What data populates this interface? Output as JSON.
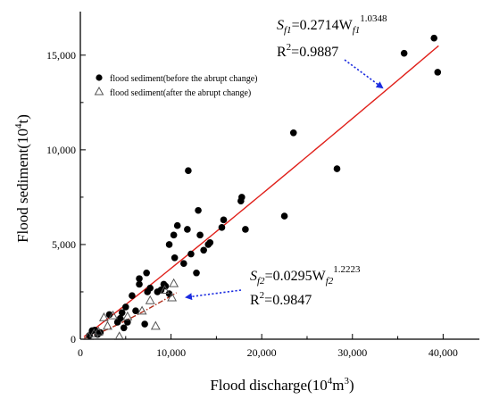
{
  "chart_data": {
    "type": "scatter",
    "xlabel": "Flood discharge(10",
    "xlabel_sup": "4",
    "xlabel_unit": "m",
    "xlabel_sup2": "3",
    "xlabel_end": ")",
    "ylabel": "Flood sediment(10",
    "ylabel_sup": "4",
    "ylabel_end": "t)",
    "xlim": [
      0,
      44000
    ],
    "ylim": [
      0,
      17300
    ],
    "xticks": [
      0,
      10000,
      20000,
      30000,
      40000
    ],
    "xtick_labels": [
      "0",
      "10,000",
      "20,000",
      "30,000",
      "40,000"
    ],
    "yticks": [
      0,
      5000,
      10000,
      15000
    ],
    "ytick_labels": [
      "0",
      "5,000",
      "10,000",
      "15,000"
    ],
    "legend_position": "upper-left",
    "series": [
      {
        "name": "flood sediment(before the abrupt change)",
        "marker": "circle-filled",
        "color": "#000000",
        "x": [
          1000,
          1300,
          1600,
          1900,
          2200,
          3200,
          4100,
          4400,
          4600,
          4800,
          5000,
          5200,
          5700,
          6100,
          6500,
          6500,
          7100,
          7400,
          7700,
          7300,
          8500,
          8900,
          9200,
          9400,
          9800,
          9800,
          10300,
          10400,
          10700,
          11400,
          11800,
          11900,
          12200,
          12800,
          13000,
          13200,
          13600,
          14100,
          14300,
          15600,
          15800,
          17700,
          17800,
          18200,
          22500,
          23500,
          28300,
          35700,
          39000,
          39400
        ],
        "y": [
          200,
          450,
          480,
          250,
          350,
          1300,
          900,
          1100,
          1400,
          600,
          1700,
          900,
          2300,
          1500,
          2900,
          3200,
          800,
          2500,
          2700,
          3500,
          2500,
          2600,
          2900,
          2800,
          5000,
          2400,
          5500,
          4300,
          6000,
          4000,
          5800,
          8900,
          4500,
          3500,
          6800,
          5500,
          4700,
          5000,
          5100,
          5900,
          6300,
          7300,
          7500,
          5800,
          6500,
          10900,
          9000,
          15100,
          15900,
          14100
        ]
      },
      {
        "name": "flood sediment(after the abrupt change)",
        "marker": "triangle-open",
        "color": "#555555",
        "x": [
          900,
          1500,
          2000,
          2600,
          3000,
          3600,
          4300,
          5200,
          6800,
          7700,
          8300,
          9300,
          10100,
          10300
        ],
        "y": [
          150,
          300,
          400,
          1150,
          700,
          1250,
          150,
          1200,
          1500,
          2050,
          700,
          2600,
          2200,
          2950
        ]
      }
    ],
    "fits": [
      {
        "formula_prefix": "S",
        "formula_sub": "f1",
        "formula_mid": "=0.2714W",
        "formula_sub2": "f1",
        "formula_sup": "1.0348",
        "r2_prefix": "R",
        "r2_sup": "2",
        "r2_value": "=0.9887",
        "coef": 0.2714,
        "exp": 1.0348,
        "x_range": [
          400,
          39500
        ],
        "color": "#e0201a",
        "style": "solid"
      },
      {
        "formula_prefix": "S",
        "formula_sub": "f2",
        "formula_mid": "=0.0295W",
        "formula_sub2": "f2",
        "formula_sup": "1.2223",
        "r2_prefix": "R",
        "r2_sup": "2",
        "r2_value": "=0.9847",
        "coef": 0.0295,
        "exp": 1.2223,
        "x_range": [
          400,
          10600
        ],
        "color": "#b02d1a",
        "style": "dash-dot"
      }
    ],
    "arrow_color": "#1a2be0"
  }
}
